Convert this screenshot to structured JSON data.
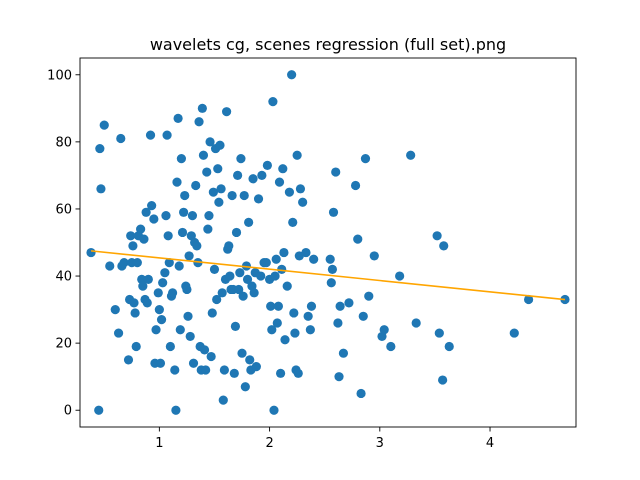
{
  "chart_data": {
    "type": "scatter",
    "title": "wavelets cg, scenes regression (full set).png",
    "xlabel": "",
    "ylabel": "",
    "xlim": [
      0.28,
      4.78
    ],
    "ylim": [
      -5,
      105
    ],
    "xticks": [
      1,
      2,
      3,
      4
    ],
    "yticks": [
      0,
      20,
      40,
      60,
      80,
      100
    ],
    "grid": false,
    "point_color": "#1f77b4",
    "line_color": "#ffa500",
    "series": [
      {
        "type": "scatter",
        "points": [
          [
            0.38,
            47
          ],
          [
            0.45,
            0
          ],
          [
            0.46,
            78
          ],
          [
            0.47,
            66
          ],
          [
            0.5,
            85
          ],
          [
            0.55,
            43
          ],
          [
            0.6,
            30
          ],
          [
            0.63,
            23
          ],
          [
            0.65,
            81
          ],
          [
            0.66,
            43
          ],
          [
            0.68,
            44
          ],
          [
            0.72,
            15
          ],
          [
            0.73,
            33
          ],
          [
            0.74,
            52
          ],
          [
            0.75,
            44
          ],
          [
            0.76,
            49
          ],
          [
            0.77,
            32
          ],
          [
            0.78,
            29
          ],
          [
            0.79,
            19
          ],
          [
            0.8,
            44
          ],
          [
            0.81,
            52
          ],
          [
            0.83,
            54
          ],
          [
            0.84,
            39
          ],
          [
            0.85,
            37
          ],
          [
            0.86,
            51
          ],
          [
            0.87,
            33
          ],
          [
            0.88,
            59
          ],
          [
            0.89,
            32
          ],
          [
            0.9,
            39
          ],
          [
            0.92,
            82
          ],
          [
            0.93,
            61
          ],
          [
            0.95,
            57
          ],
          [
            0.96,
            14
          ],
          [
            0.97,
            24
          ],
          [
            0.99,
            35
          ],
          [
            1.0,
            30
          ],
          [
            1.01,
            14
          ],
          [
            1.02,
            27
          ],
          [
            1.03,
            38
          ],
          [
            1.05,
            41
          ],
          [
            1.06,
            58
          ],
          [
            1.07,
            82
          ],
          [
            1.08,
            52
          ],
          [
            1.09,
            44
          ],
          [
            1.1,
            19
          ],
          [
            1.11,
            34
          ],
          [
            1.12,
            35
          ],
          [
            1.14,
            12
          ],
          [
            1.15,
            0
          ],
          [
            1.16,
            68
          ],
          [
            1.17,
            87
          ],
          [
            1.18,
            43
          ],
          [
            1.19,
            24
          ],
          [
            1.2,
            75
          ],
          [
            1.21,
            53
          ],
          [
            1.22,
            59
          ],
          [
            1.23,
            64
          ],
          [
            1.24,
            37
          ],
          [
            1.25,
            36
          ],
          [
            1.26,
            28
          ],
          [
            1.27,
            46
          ],
          [
            1.28,
            22
          ],
          [
            1.29,
            52
          ],
          [
            1.3,
            58
          ],
          [
            1.31,
            14
          ],
          [
            1.32,
            50
          ],
          [
            1.33,
            67
          ],
          [
            1.34,
            49
          ],
          [
            1.35,
            44
          ],
          [
            1.36,
            86
          ],
          [
            1.37,
            19
          ],
          [
            1.38,
            12
          ],
          [
            1.39,
            90
          ],
          [
            1.4,
            76
          ],
          [
            1.41,
            18
          ],
          [
            1.42,
            12
          ],
          [
            1.43,
            71
          ],
          [
            1.44,
            54
          ],
          [
            1.45,
            58
          ],
          [
            1.46,
            80
          ],
          [
            1.47,
            16
          ],
          [
            1.48,
            29
          ],
          [
            1.49,
            65
          ],
          [
            1.5,
            42
          ],
          [
            1.51,
            78
          ],
          [
            1.52,
            33
          ],
          [
            1.53,
            72
          ],
          [
            1.54,
            62
          ],
          [
            1.55,
            79
          ],
          [
            1.56,
            66
          ],
          [
            1.57,
            35
          ],
          [
            1.58,
            3
          ],
          [
            1.59,
            12
          ],
          [
            1.6,
            39
          ],
          [
            1.61,
            89
          ],
          [
            1.62,
            48
          ],
          [
            1.63,
            49
          ],
          [
            1.64,
            40
          ],
          [
            1.65,
            36
          ],
          [
            1.66,
            64
          ],
          [
            1.67,
            36
          ],
          [
            1.68,
            11
          ],
          [
            1.69,
            25
          ],
          [
            1.7,
            53
          ],
          [
            1.71,
            70
          ],
          [
            1.72,
            36
          ],
          [
            1.73,
            41
          ],
          [
            1.74,
            75
          ],
          [
            1.75,
            17
          ],
          [
            1.76,
            34
          ],
          [
            1.77,
            64
          ],
          [
            1.78,
            7
          ],
          [
            1.79,
            43
          ],
          [
            1.8,
            39
          ],
          [
            1.81,
            56
          ],
          [
            1.82,
            15
          ],
          [
            1.83,
            12
          ],
          [
            1.84,
            37
          ],
          [
            1.85,
            69
          ],
          [
            1.86,
            35
          ],
          [
            1.87,
            41
          ],
          [
            1.88,
            13
          ],
          [
            1.9,
            63
          ],
          [
            1.92,
            40
          ],
          [
            1.93,
            70
          ],
          [
            1.95,
            44
          ],
          [
            1.97,
            44
          ],
          [
            1.98,
            73
          ],
          [
            2.0,
            39
          ],
          [
            2.01,
            31
          ],
          [
            2.02,
            24
          ],
          [
            2.03,
            92
          ],
          [
            2.04,
            0
          ],
          [
            2.05,
            40
          ],
          [
            2.06,
            45
          ],
          [
            2.07,
            26
          ],
          [
            2.08,
            31
          ],
          [
            2.09,
            68
          ],
          [
            2.1,
            11
          ],
          [
            2.11,
            42
          ],
          [
            2.12,
            72
          ],
          [
            2.13,
            47
          ],
          [
            2.14,
            21
          ],
          [
            2.16,
            37
          ],
          [
            2.18,
            65
          ],
          [
            2.2,
            100
          ],
          [
            2.21,
            56
          ],
          [
            2.22,
            29
          ],
          [
            2.23,
            23
          ],
          [
            2.24,
            12
          ],
          [
            2.25,
            76
          ],
          [
            2.26,
            11
          ],
          [
            2.27,
            46
          ],
          [
            2.28,
            66
          ],
          [
            2.3,
            62
          ],
          [
            2.33,
            47
          ],
          [
            2.35,
            28
          ],
          [
            2.37,
            24
          ],
          [
            2.38,
            31
          ],
          [
            2.4,
            45
          ],
          [
            2.55,
            45
          ],
          [
            2.56,
            38
          ],
          [
            2.57,
            42
          ],
          [
            2.58,
            59
          ],
          [
            2.6,
            71
          ],
          [
            2.62,
            26
          ],
          [
            2.63,
            10
          ],
          [
            2.64,
            31
          ],
          [
            2.67,
            17
          ],
          [
            2.72,
            32
          ],
          [
            2.78,
            67
          ],
          [
            2.8,
            51
          ],
          [
            2.83,
            5
          ],
          [
            2.85,
            28
          ],
          [
            2.87,
            75
          ],
          [
            2.9,
            34
          ],
          [
            2.95,
            46
          ],
          [
            3.02,
            22
          ],
          [
            3.04,
            24
          ],
          [
            3.1,
            19
          ],
          [
            3.18,
            40
          ],
          [
            3.28,
            76
          ],
          [
            3.33,
            26
          ],
          [
            3.52,
            52
          ],
          [
            3.54,
            23
          ],
          [
            3.57,
            9
          ],
          [
            3.58,
            49
          ],
          [
            3.63,
            19
          ],
          [
            4.22,
            23
          ],
          [
            4.35,
            33
          ],
          [
            4.68,
            33
          ]
        ]
      },
      {
        "type": "line",
        "points": [
          [
            0.38,
            47.5
          ],
          [
            4.68,
            33.0
          ]
        ]
      }
    ]
  }
}
